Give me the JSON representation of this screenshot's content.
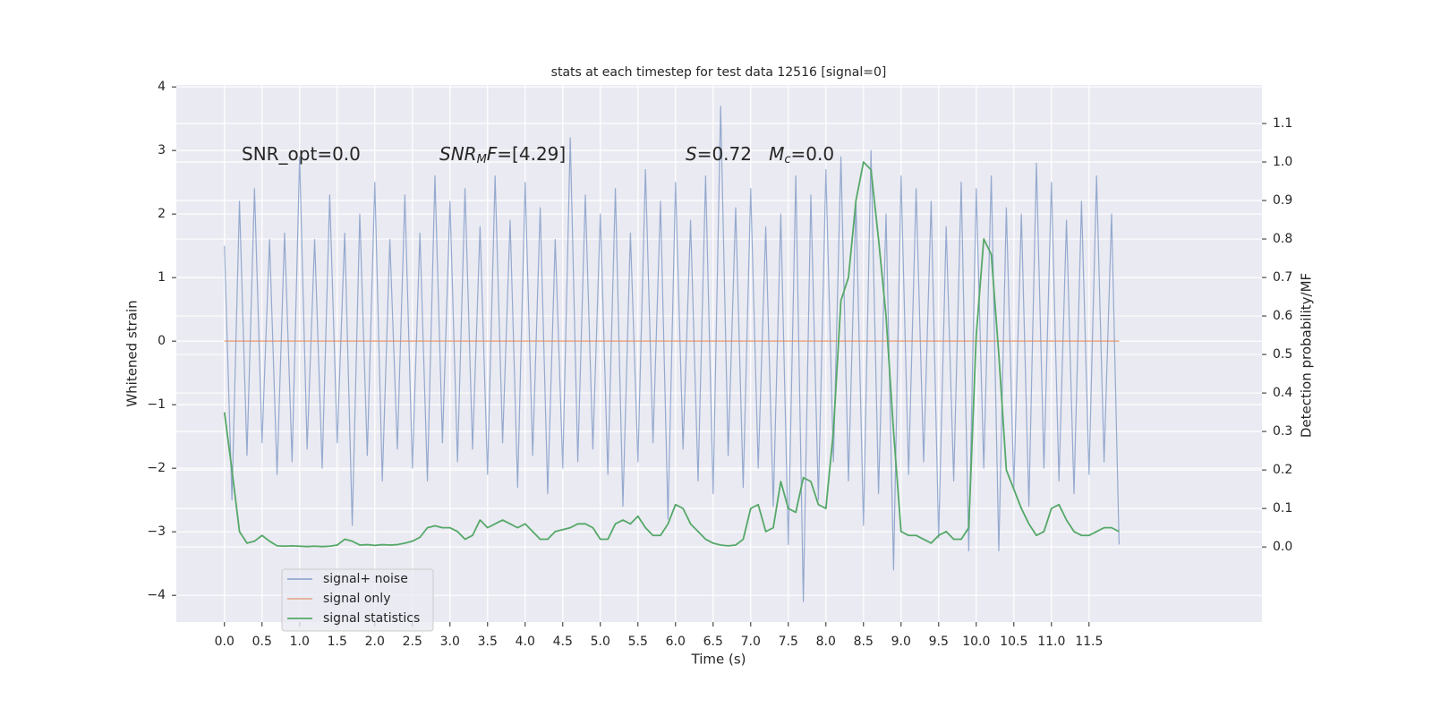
{
  "chart_data": {
    "type": "line",
    "title": "stats at each timestep for test data 12516 [signal=0]",
    "xlabel": "Time (s)",
    "ylabel": "Whitened strain",
    "y2label": "Detection probability/MF",
    "annotations": [
      [
        "SNR_opt=0.0"
      ],
      [
        "SNR",
        "M",
        "F",
        "=[4.29]"
      ],
      [
        "S",
        "=0.72   ",
        "M",
        "c",
        "=0.0"
      ]
    ],
    "x": [
      0,
      0.1,
      0.2,
      0.3,
      0.4,
      0.5,
      0.6,
      0.7,
      0.8,
      0.9,
      1,
      1.1,
      1.2,
      1.3,
      1.4,
      1.5,
      1.6,
      1.7,
      1.8,
      1.9,
      2,
      2.1,
      2.2,
      2.3,
      2.4,
      2.5,
      2.6,
      2.7,
      2.8,
      2.9,
      3,
      3.1,
      3.2,
      3.3,
      3.4,
      3.5,
      3.6,
      3.7,
      3.8,
      3.9,
      4,
      4.1,
      4.2,
      4.3,
      4.4,
      4.5,
      4.6,
      4.7,
      4.8,
      4.9,
      5,
      5.1,
      5.2,
      5.3,
      5.4,
      5.5,
      5.6,
      5.7,
      5.8,
      5.9,
      6,
      6.1,
      6.2,
      6.3,
      6.4,
      6.5,
      6.6,
      6.7,
      6.8,
      6.9,
      7,
      7.1,
      7.2,
      7.3,
      7.4,
      7.5,
      7.6,
      7.7,
      7.8,
      7.9,
      8,
      8.1,
      8.2,
      8.3,
      8.4,
      8.5,
      8.6,
      8.7,
      8.8,
      8.9,
      9,
      9.1,
      9.2,
      9.3,
      9.4,
      9.5,
      9.6,
      9.7,
      9.8,
      9.9,
      10,
      10.1,
      10.2,
      10.3,
      10.4,
      10.5,
      10.6,
      10.7,
      10.8,
      10.9,
      11,
      11.1,
      11.2,
      11.3,
      11.4,
      11.5,
      11.6,
      11.7,
      11.8,
      11.9
    ],
    "series": [
      {
        "name": "signal+ noise",
        "color": "#4c72b0",
        "values": [
          1.5,
          -2.5,
          2.2,
          -1.8,
          2.4,
          -1.6,
          1.6,
          -2.1,
          1.7,
          -1.9,
          2.9,
          -1.7,
          1.6,
          -2.0,
          2.3,
          -1.6,
          1.7,
          -2.9,
          2.0,
          -1.8,
          2.5,
          -2.2,
          1.6,
          -1.7,
          2.3,
          -2.0,
          1.7,
          -2.2,
          2.6,
          -1.6,
          2.2,
          -1.9,
          2.4,
          -1.7,
          1.8,
          -2.1,
          2.6,
          -1.6,
          1.9,
          -2.3,
          2.5,
          -1.8,
          2.1,
          -2.4,
          1.6,
          -2.0,
          3.2,
          -1.9,
          2.3,
          -1.7,
          2.0,
          -2.1,
          2.4,
          -2.6,
          1.7,
          -1.9,
          2.7,
          -1.6,
          2.2,
          -2.8,
          2.5,
          -1.7,
          1.9,
          -2.2,
          2.6,
          -2.4,
          3.7,
          -1.8,
          2.1,
          -2.3,
          2.4,
          -2.0,
          1.8,
          -2.6,
          2.0,
          -3.2,
          2.6,
          -4.1,
          2.3,
          -2.5,
          2.7,
          -1.9,
          2.9,
          -2.2,
          2.2,
          -2.9,
          3.0,
          -2.4,
          2.0,
          -3.6,
          2.6,
          -2.1,
          2.4,
          -1.9,
          2.2,
          -3.1,
          1.8,
          -2.2,
          2.5,
          -3.3,
          2.4,
          -2.0,
          2.6,
          -3.3,
          2.1,
          -2.3,
          2.0,
          -2.6,
          2.8,
          -2.0,
          2.5,
          -2.2,
          1.9,
          -2.4,
          2.2,
          -2.1,
          2.6,
          -1.9,
          2.0,
          -3.2
        ]
      },
      {
        "name": "signal only",
        "color": "#dd8452",
        "values": [
          0,
          0,
          0,
          0,
          0,
          0,
          0,
          0,
          0,
          0,
          0,
          0,
          0,
          0,
          0,
          0,
          0,
          0,
          0,
          0,
          0,
          0,
          0,
          0,
          0,
          0,
          0,
          0,
          0,
          0,
          0,
          0,
          0,
          0,
          0,
          0,
          0,
          0,
          0,
          0,
          0,
          0,
          0,
          0,
          0,
          0,
          0,
          0,
          0,
          0,
          0,
          0,
          0,
          0,
          0,
          0,
          0,
          0,
          0,
          0,
          0,
          0,
          0,
          0,
          0,
          0,
          0,
          0,
          0,
          0,
          0,
          0,
          0,
          0,
          0,
          0,
          0,
          0,
          0,
          0,
          0,
          0,
          0,
          0,
          0,
          0,
          0,
          0,
          0,
          0,
          0,
          0,
          0,
          0,
          0,
          0,
          0,
          0,
          0,
          0,
          0,
          0,
          0,
          0,
          0,
          0,
          0,
          0,
          0,
          0,
          0,
          0,
          0,
          0,
          0,
          0,
          0,
          0,
          0,
          0
        ]
      },
      {
        "name": "signal statistics",
        "color": "#55a868",
        "axis": "y2",
        "values": [
          0.35,
          0.2,
          0.04,
          0.01,
          0.015,
          0.03,
          0.015,
          0.003,
          0.002,
          0.003,
          0.002,
          0.001,
          0.002,
          0.001,
          0.002,
          0.005,
          0.02,
          0.015,
          0.005,
          0.006,
          0.004,
          0.006,
          0.005,
          0.006,
          0.01,
          0.015,
          0.025,
          0.05,
          0.055,
          0.05,
          0.05,
          0.04,
          0.02,
          0.03,
          0.07,
          0.05,
          0.06,
          0.07,
          0.06,
          0.05,
          0.06,
          0.04,
          0.02,
          0.02,
          0.04,
          0.045,
          0.05,
          0.06,
          0.06,
          0.05,
          0.02,
          0.02,
          0.06,
          0.07,
          0.06,
          0.08,
          0.05,
          0.03,
          0.03,
          0.06,
          0.11,
          0.1,
          0.06,
          0.04,
          0.02,
          0.01,
          0.005,
          0.003,
          0.005,
          0.02,
          0.1,
          0.11,
          0.04,
          0.05,
          0.17,
          0.1,
          0.09,
          0.18,
          0.17,
          0.11,
          0.1,
          0.3,
          0.64,
          0.7,
          0.9,
          1.0,
          0.98,
          0.8,
          0.6,
          0.3,
          0.04,
          0.03,
          0.03,
          0.02,
          0.01,
          0.03,
          0.04,
          0.02,
          0.02,
          0.05,
          0.55,
          0.8,
          0.76,
          0.5,
          0.2,
          0.15,
          0.1,
          0.06,
          0.03,
          0.04,
          0.1,
          0.11,
          0.07,
          0.04,
          0.03,
          0.03,
          0.04,
          0.05,
          0.05,
          0.04
        ]
      }
    ],
    "xlim": [
      -0.64,
      13.8
    ],
    "ylim": [
      -4.42,
      4.03
    ],
    "y2lim": [
      -0.195,
      1.2
    ],
    "xticks": [
      {
        "value": 0,
        "label": "0.0"
      },
      {
        "value": 0.5,
        "label": "0.5"
      },
      {
        "value": 1,
        "label": "1.0"
      },
      {
        "value": 1.5,
        "label": "1.5"
      },
      {
        "value": 2,
        "label": "2.0"
      },
      {
        "value": 2.5,
        "label": "2.5"
      },
      {
        "value": 3,
        "label": "3.0"
      },
      {
        "value": 3.5,
        "label": "3.5"
      },
      {
        "value": 4,
        "label": "4.0"
      },
      {
        "value": 4.5,
        "label": "4.5"
      },
      {
        "value": 5,
        "label": "5.0"
      },
      {
        "value": 5.5,
        "label": "5.5"
      },
      {
        "value": 6,
        "label": "6.0"
      },
      {
        "value": 6.5,
        "label": "6.5"
      },
      {
        "value": 7,
        "label": "7.0"
      },
      {
        "value": 7.5,
        "label": "7.5"
      },
      {
        "value": 8,
        "label": "8.0"
      },
      {
        "value": 8.5,
        "label": "8.5"
      },
      {
        "value": 9,
        "label": "9.0"
      },
      {
        "value": 9.5,
        "label": "9.5"
      },
      {
        "value": 10,
        "label": "10.0"
      },
      {
        "value": 10.5,
        "label": "10.5"
      },
      {
        "value": 11,
        "label": "11.0"
      },
      {
        "value": 11.5,
        "label": "11.5"
      }
    ],
    "yticks": [
      {
        "value": -4,
        "label": "−4"
      },
      {
        "value": -3,
        "label": "−3"
      },
      {
        "value": -2,
        "label": "−2"
      },
      {
        "value": -1,
        "label": "−1"
      },
      0,
      1,
      2,
      3,
      4
    ],
    "y2ticks": [
      {
        "value": 0,
        "label": "0.0"
      },
      {
        "value": 0.1,
        "label": "0.1"
      },
      {
        "value": 0.2,
        "label": "0.2"
      },
      {
        "value": 0.3,
        "label": "0.3"
      },
      {
        "value": 0.4,
        "label": "0.4"
      },
      {
        "value": 0.5,
        "label": "0.5"
      },
      {
        "value": 0.6,
        "label": "0.6"
      },
      {
        "value": 0.7,
        "label": "0.7"
      },
      {
        "value": 0.8,
        "label": "0.8"
      },
      {
        "value": 0.9,
        "label": "0.9"
      },
      {
        "value": 1,
        "label": "1.0"
      },
      {
        "value": 1.1,
        "label": "1.1"
      }
    ],
    "grid": true,
    "legend": "lower left"
  }
}
